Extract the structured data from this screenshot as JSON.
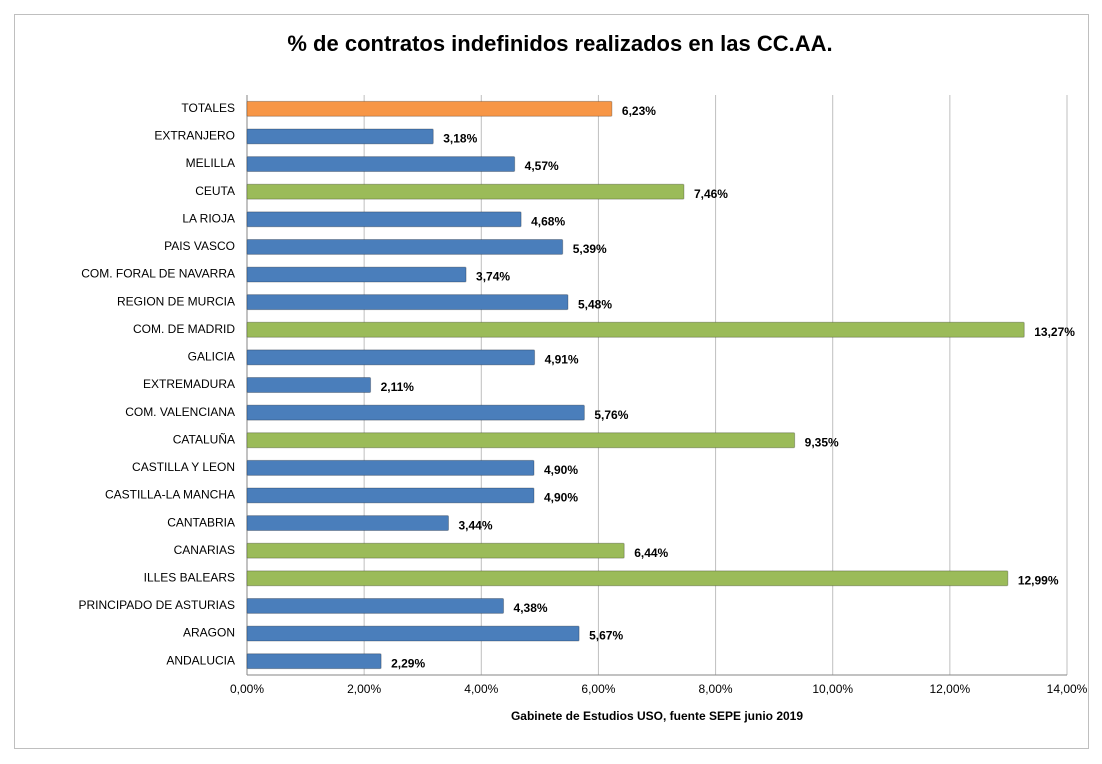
{
  "chart_data": {
    "type": "hbar",
    "title": "% de contratos indefinidos realizados en las CC.AA.",
    "x_label": "Gabinete de Estudios USO, fuente SEPE junio 2019",
    "categories": [
      "TOTALES",
      "EXTRANJERO",
      "MELILLA",
      "CEUTA",
      "LA RIOJA",
      "PAIS VASCO",
      "COM. FORAL DE NAVARRA",
      "REGION DE MURCIA",
      "COM. DE MADRID",
      "GALICIA",
      "EXTREMADURA",
      "COM. VALENCIANA",
      "CATALUÑA",
      "CASTILLA Y LEON",
      "CASTILLA-LA MANCHA",
      "CANTABRIA",
      "CANARIAS",
      "ILLES BALEARS",
      "PRINCIPADO DE ASTURIAS",
      "ARAGON",
      "ANDALUCIA"
    ],
    "values": [
      6.23,
      3.18,
      4.57,
      7.46,
      4.68,
      5.39,
      3.74,
      5.48,
      13.27,
      4.91,
      2.11,
      5.76,
      9.35,
      4.9,
      4.9,
      3.44,
      6.44,
      12.99,
      4.38,
      5.67,
      2.29
    ],
    "value_labels": [
      "6,23%",
      "3,18%",
      "4,57%",
      "7,46%",
      "4,68%",
      "5,39%",
      "3,74%",
      "5,48%",
      "13,27%",
      "4,91%",
      "2,11%",
      "5,76%",
      "9,35%",
      "4,90%",
      "4,90%",
      "3,44%",
      "6,44%",
      "12,99%",
      "4,38%",
      "5,67%",
      "2,29%"
    ],
    "colors": [
      "#f79646",
      "#4a7ebb",
      "#4a7ebb",
      "#9bbb59",
      "#4a7ebb",
      "#4a7ebb",
      "#4a7ebb",
      "#4a7ebb",
      "#9bbb59",
      "#4a7ebb",
      "#4a7ebb",
      "#4a7ebb",
      "#9bbb59",
      "#4a7ebb",
      "#4a7ebb",
      "#4a7ebb",
      "#9bbb59",
      "#9bbb59",
      "#4a7ebb",
      "#4a7ebb",
      "#4a7ebb"
    ],
    "xlim": [
      0,
      14
    ],
    "xticks": [
      {
        "value": 0,
        "label": "0,00%"
      },
      {
        "value": 2,
        "label": "2,00%"
      },
      {
        "value": 4,
        "label": "4,00%"
      },
      {
        "value": 6,
        "label": "6,00%"
      },
      {
        "value": 8,
        "label": "8,00%"
      },
      {
        "value": 10,
        "label": "10,00%"
      },
      {
        "value": 12,
        "label": "12,00%"
      },
      {
        "value": 14,
        "label": "14,00%"
      }
    ],
    "grid": true
  }
}
